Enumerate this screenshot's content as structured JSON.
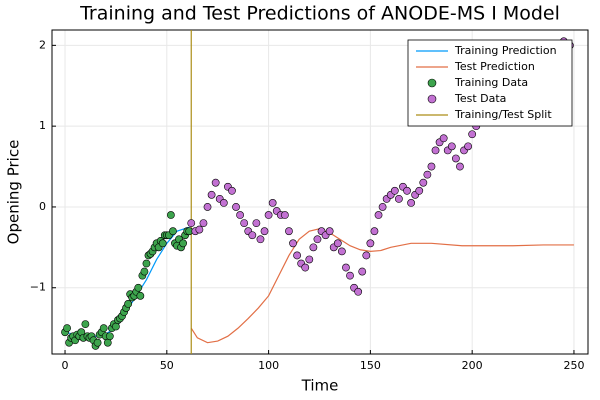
{
  "chart_data": {
    "type": "line",
    "title": "Training and Test Predictions of ANODE-MS I Model",
    "x_label": "Time",
    "y_label": "Opening Price",
    "xlim": [
      -6.4,
      256.9
    ],
    "ylim": [
      -1.82,
      2.19
    ],
    "xticks": [
      0,
      50,
      100,
      150,
      200,
      250
    ],
    "yticks": [
      {
        "value": -1,
        "label": "−1"
      },
      0,
      1,
      2
    ],
    "grid": true,
    "legend": "top-right",
    "series": [
      {
        "name": "Training Prediction",
        "type": "line",
        "color": "#009af9",
        "x": [
          0,
          5,
          10,
          15,
          20,
          25,
          30,
          35,
          40,
          45,
          50,
          55,
          61
        ],
        "values": [
          -1.55,
          -1.58,
          -1.6,
          -1.6,
          -1.57,
          -1.5,
          -1.3,
          -1.1,
          -0.9,
          -0.65,
          -0.45,
          -0.3,
          -0.25
        ]
      },
      {
        "name": "Test Prediction",
        "type": "line",
        "color": "#e26f46",
        "x": [
          62,
          65,
          70,
          75,
          80,
          85,
          90,
          95,
          100,
          105,
          110,
          115,
          120,
          125,
          130,
          135,
          140,
          145,
          150,
          155,
          160,
          170,
          180,
          195,
          210,
          220,
          235,
          250
        ],
        "values": [
          -1.5,
          -1.62,
          -1.68,
          -1.66,
          -1.6,
          -1.5,
          -1.38,
          -1.25,
          -1.1,
          -0.85,
          -0.6,
          -0.4,
          -0.3,
          -0.27,
          -0.32,
          -0.4,
          -0.48,
          -0.53,
          -0.55,
          -0.54,
          -0.5,
          -0.45,
          -0.45,
          -0.48,
          -0.48,
          -0.48,
          -0.47,
          -0.47
        ]
      },
      {
        "name": "Training Data",
        "type": "scatter",
        "color": "#3da44d",
        "x": [
          0,
          1,
          2,
          3,
          4,
          5,
          6,
          7,
          8,
          9,
          10,
          11,
          12,
          13,
          14,
          15,
          16,
          17,
          18,
          19,
          20,
          21,
          22,
          23,
          24,
          25,
          26,
          27,
          28,
          29,
          30,
          31,
          32,
          33,
          34,
          35,
          36,
          37,
          38,
          39,
          40,
          41,
          42,
          43,
          44,
          45,
          46,
          47,
          48,
          49,
          50,
          51,
          52,
          53,
          54,
          55,
          56,
          57,
          58,
          59,
          60,
          61
        ],
        "values": [
          -1.55,
          -1.5,
          -1.68,
          -1.62,
          -1.6,
          -1.65,
          -1.58,
          -1.6,
          -1.55,
          -1.62,
          -1.45,
          -1.6,
          -1.62,
          -1.6,
          -1.65,
          -1.72,
          -1.68,
          -1.58,
          -1.55,
          -1.5,
          -1.6,
          -1.68,
          -1.6,
          -1.5,
          -1.45,
          -1.48,
          -1.4,
          -1.38,
          -1.35,
          -1.3,
          -1.25,
          -1.2,
          -1.08,
          -1.12,
          -1.1,
          -1.05,
          -1.0,
          -1.1,
          -0.85,
          -0.8,
          -0.7,
          -0.6,
          -0.58,
          -0.55,
          -0.5,
          -0.45,
          -0.5,
          -0.42,
          -0.45,
          -0.35,
          -0.35,
          -0.35,
          -0.1,
          -0.3,
          -0.45,
          -0.48,
          -0.4,
          -0.5,
          -0.45,
          -0.35,
          -0.3,
          -0.3
        ]
      },
      {
        "name": "Test Data",
        "type": "scatter",
        "color": "#c271d2",
        "x": [
          62,
          64,
          66,
          68,
          70,
          72,
          74,
          76,
          78,
          80,
          82,
          84,
          86,
          88,
          90,
          92,
          94,
          96,
          98,
          100,
          102,
          104,
          106,
          108,
          110,
          112,
          114,
          116,
          118,
          120,
          122,
          124,
          126,
          128,
          130,
          132,
          134,
          136,
          138,
          140,
          142,
          144,
          146,
          148,
          150,
          152,
          154,
          156,
          158,
          160,
          162,
          164,
          166,
          168,
          170,
          172,
          174,
          176,
          178,
          180,
          182,
          184,
          186,
          188,
          190,
          192,
          194,
          196,
          198,
          200,
          202,
          204,
          206,
          208,
          210,
          212,
          214,
          216,
          218,
          220,
          222,
          224,
          226,
          228,
          230,
          232,
          234,
          236,
          238,
          240,
          242,
          245,
          248
        ],
        "values": [
          -0.2,
          -0.3,
          -0.28,
          -0.2,
          0.0,
          0.15,
          0.3,
          0.1,
          0.05,
          0.25,
          0.2,
          0.0,
          -0.1,
          -0.2,
          -0.3,
          -0.35,
          -0.2,
          -0.4,
          -0.3,
          -0.1,
          0.05,
          -0.05,
          -0.1,
          -0.1,
          -0.3,
          -0.45,
          -0.6,
          -0.7,
          -0.75,
          -0.65,
          -0.5,
          -0.4,
          -0.3,
          -0.35,
          -0.3,
          -0.5,
          -0.45,
          -0.55,
          -0.75,
          -0.85,
          -1.0,
          -1.05,
          -0.8,
          -0.6,
          -0.45,
          -0.3,
          -0.1,
          0.0,
          0.1,
          0.15,
          0.2,
          0.1,
          0.25,
          0.2,
          0.05,
          0.15,
          0.2,
          0.3,
          0.4,
          0.5,
          0.7,
          0.8,
          0.85,
          0.7,
          0.75,
          0.6,
          0.5,
          0.7,
          0.75,
          0.9,
          1.0,
          1.1,
          1.2,
          1.35,
          1.1,
          1.3,
          1.4,
          1.5,
          1.55,
          1.65,
          1.7,
          1.6,
          1.55,
          1.75,
          1.8,
          1.85,
          1.9,
          1.95,
          1.85,
          1.9,
          1.95,
          2.05,
          2.0
        ]
      },
      {
        "name": "Training/Test Split",
        "type": "vline",
        "color": "#ac8e18",
        "x": [
          62
        ]
      }
    ]
  }
}
